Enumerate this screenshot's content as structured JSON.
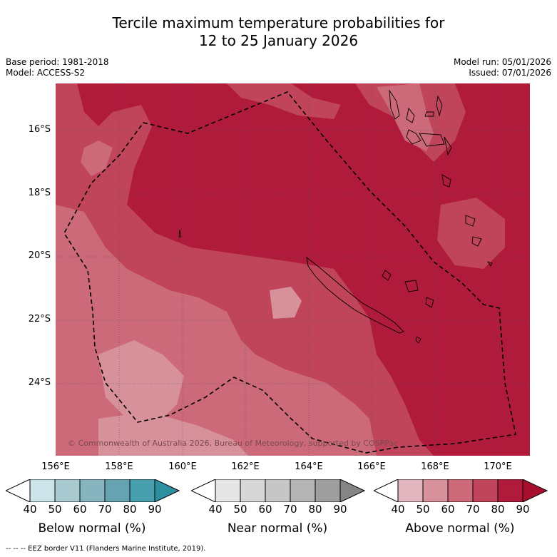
{
  "title": {
    "line1": "Tercile maximum temperature probabilities for",
    "line2": "12 to 25 January 2026"
  },
  "meta": {
    "base_period": "Base period: 1981-2018",
    "model": "Model: ACCESS-S2",
    "model_run": "Model run: 05/01/2026",
    "issued": "Issued: 07/01/2026"
  },
  "map": {
    "latitude_labels": [
      "16°S",
      "18°S",
      "20°S",
      "22°S",
      "24°S"
    ],
    "longitude_labels": [
      "156°E",
      "158°E",
      "160°E",
      "162°E",
      "164°E",
      "166°E",
      "168°E",
      "170°E"
    ],
    "copyright": "© Commonwealth of Australia 2026, Bureau of Meteorology, supported by COSPPac",
    "colors": {
      "above_80_90": "#b11b3b",
      "above_70_80": "#c0455b",
      "above_60_70": "#cc6a79",
      "above_50_60": "#d6919a"
    }
  },
  "colorbars": [
    {
      "title": "Below normal (%)",
      "ticks": [
        "40",
        "50",
        "60",
        "70",
        "80",
        "90"
      ],
      "colors": [
        "#cce3e9",
        "#a8c9d0",
        "#86b4bf",
        "#66a2b0",
        "#479ead",
        "#2e8f9f"
      ]
    },
    {
      "title": "Near normal (%)",
      "ticks": [
        "40",
        "50",
        "60",
        "70",
        "80",
        "90"
      ],
      "colors": [
        "#e6e6e6",
        "#d7d7d7",
        "#c6c6c6",
        "#b4b4b4",
        "#9e9e9e",
        "#858585"
      ]
    },
    {
      "title": "Above normal (%)",
      "ticks": [
        "40",
        "50",
        "60",
        "70",
        "80",
        "90"
      ],
      "colors": [
        "#e2b6bf",
        "#d6919a",
        "#cc6a79",
        "#c0455b",
        "#b11b3b",
        "#a6102d"
      ]
    }
  ],
  "footnote": "--  --  -- EEZ border V11 (Flanders Marine Institute, 2019)."
}
